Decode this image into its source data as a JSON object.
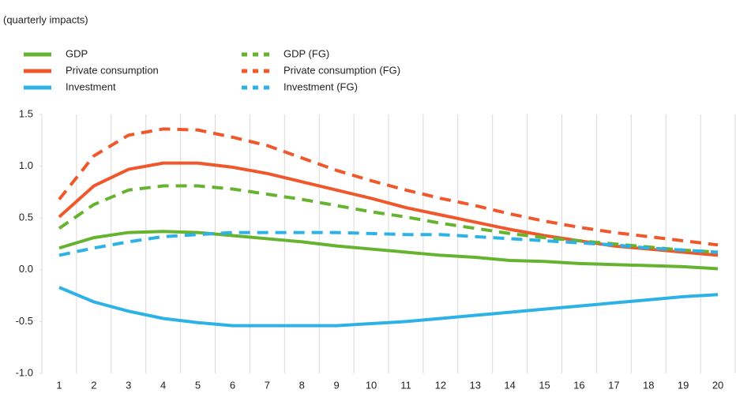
{
  "chart_data": {
    "type": "line",
    "subtitle": "(quarterly impacts)",
    "categories": [
      "1",
      "2",
      "3",
      "4",
      "5",
      "6",
      "7",
      "8",
      "9",
      "10",
      "11",
      "12",
      "13",
      "14",
      "15",
      "16",
      "17",
      "18",
      "19",
      "20"
    ],
    "series": [
      {
        "name": "GDP",
        "color": "#65b32e",
        "dashed": false,
        "values": [
          0.21,
          0.31,
          0.36,
          0.37,
          0.36,
          0.33,
          0.3,
          0.27,
          0.23,
          0.2,
          0.17,
          0.14,
          0.12,
          0.09,
          0.08,
          0.06,
          0.05,
          0.04,
          0.03,
          0.01
        ]
      },
      {
        "name": "Private consumption",
        "color": "#f0572a",
        "dashed": false,
        "values": [
          0.51,
          0.81,
          0.97,
          1.03,
          1.03,
          0.99,
          0.93,
          0.85,
          0.77,
          0.69,
          0.6,
          0.53,
          0.46,
          0.39,
          0.33,
          0.28,
          0.23,
          0.2,
          0.17,
          0.14
        ]
      },
      {
        "name": "Investment",
        "color": "#2cb2e6",
        "dashed": false,
        "values": [
          -0.17,
          -0.31,
          -0.4,
          -0.47,
          -0.51,
          -0.54,
          -0.54,
          -0.54,
          -0.54,
          -0.52,
          -0.5,
          -0.47,
          -0.44,
          -0.41,
          -0.38,
          -0.35,
          -0.32,
          -0.29,
          -0.26,
          -0.24
        ]
      },
      {
        "name": "GDP (FG)",
        "color": "#65b32e",
        "dashed": true,
        "values": [
          0.4,
          0.63,
          0.77,
          0.81,
          0.81,
          0.78,
          0.73,
          0.68,
          0.62,
          0.56,
          0.51,
          0.45,
          0.4,
          0.35,
          0.31,
          0.28,
          0.25,
          0.22,
          0.19,
          0.17
        ]
      },
      {
        "name": "Private consumption  (FG)",
        "color": "#f0572a",
        "dashed": true,
        "values": [
          0.68,
          1.1,
          1.3,
          1.36,
          1.35,
          1.28,
          1.2,
          1.08,
          0.96,
          0.86,
          0.77,
          0.69,
          0.62,
          0.54,
          0.47,
          0.41,
          0.36,
          0.32,
          0.28,
          0.24
        ]
      },
      {
        "name": "Investment  (FG)",
        "color": "#2cb2e6",
        "dashed": true,
        "values": [
          0.14,
          0.21,
          0.27,
          0.32,
          0.34,
          0.36,
          0.36,
          0.36,
          0.36,
          0.35,
          0.34,
          0.34,
          0.32,
          0.3,
          0.28,
          0.26,
          0.24,
          0.21,
          0.19,
          0.17
        ]
      }
    ],
    "ylim": [
      -1.0,
      1.5
    ],
    "yticks": [
      {
        "value": -1.0,
        "label": "-1.0"
      },
      -0.5,
      {
        "value": 0.0,
        "label": "0.0"
      },
      0.5,
      {
        "value": 1.0,
        "label": "1.0"
      },
      1.5
    ]
  }
}
